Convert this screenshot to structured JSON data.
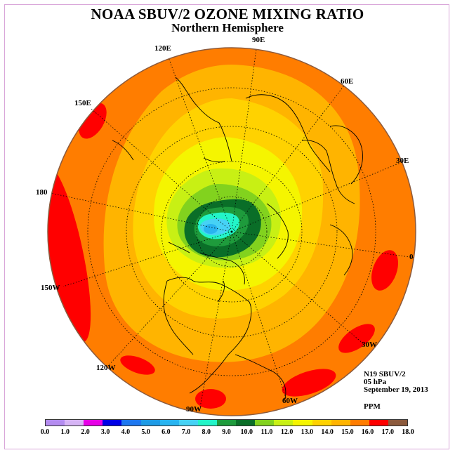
{
  "title": "NOAA SBUV/2 OZONE MIXING RATIO",
  "subtitle": "Northern Hemisphere",
  "longitude_labels": {
    "e90": "90E",
    "e120": "120E",
    "e60": "60E",
    "e150": "150E",
    "e30": "30E",
    "d180": "180",
    "d0": "0",
    "w150": "150W",
    "w30": "30W",
    "w120": "120W",
    "w60": "60W",
    "w90": "90W"
  },
  "info": {
    "instrument": "N19 SBUV/2",
    "level": "05 hPa",
    "date": "September 19, 2013",
    "units": "PPM"
  },
  "colorbar": {
    "ticks": [
      "0.0",
      "1.0",
      "2.0",
      "3.0",
      "4.0",
      "5.0",
      "6.0",
      "7.0",
      "8.0",
      "9.0",
      "10.0",
      "11.0",
      "12.0",
      "13.0",
      "14.0",
      "15.0",
      "16.0",
      "17.0",
      "18.0"
    ],
    "colors": [
      "#b48cf0",
      "#d6b4f5",
      "#e600e6",
      "#0000e6",
      "#1e78f0",
      "#1e9be6",
      "#28b4f0",
      "#46d2f5",
      "#23f5c8",
      "#1e9b3c",
      "#0a6e28",
      "#82d21e",
      "#c8f014",
      "#f5f500",
      "#ffd200",
      "#ffb400",
      "#ff7d00",
      "#ff0000",
      "#8c5a3c"
    ]
  },
  "chart_data": {
    "type": "heatmap",
    "projection": "north polar stereographic",
    "title": "NOAA SBUV/2 OZONE MIXING RATIO",
    "subtitle": "Northern Hemisphere",
    "units": "PPM",
    "range": [
      0,
      18
    ],
    "contour_interval": 1.0,
    "observed_bands": [
      {
        "level": "16-17",
        "color": "#ff0000",
        "where": "patches near 180, 150E, 0, 30W, 60W, 90W and 120W at low latitudes"
      },
      {
        "level": "15-16",
        "color": "#ff7d00",
        "where": "outer ring, low latitudes"
      },
      {
        "level": "14-15",
        "color": "#ffb400",
        "where": "subtropics"
      },
      {
        "level": "13-14",
        "color": "#ffd200",
        "where": "mid latitudes"
      },
      {
        "level": "12-13",
        "color": "#f5f500",
        "where": "mid-high latitudes"
      },
      {
        "level": "11-12",
        "color": "#c8f014",
        "where": "around the polar vortex"
      },
      {
        "level": "10-11",
        "color": "#82d21e",
        "where": "vortex edge"
      },
      {
        "level": "9-10",
        "color": "#0a6e28",
        "where": "vortex collar"
      },
      {
        "level": "8-9",
        "color": "#1e9b3c",
        "where": "inner vortex"
      },
      {
        "level": "7-8",
        "color": "#23f5c8",
        "where": "vortex core"
      },
      {
        "level": "6-7",
        "color": "#46d2f5",
        "where": "vortex core"
      },
      {
        "level": "5-6",
        "color": "#28b4f0",
        "where": "vortex minimum near pole"
      }
    ]
  }
}
